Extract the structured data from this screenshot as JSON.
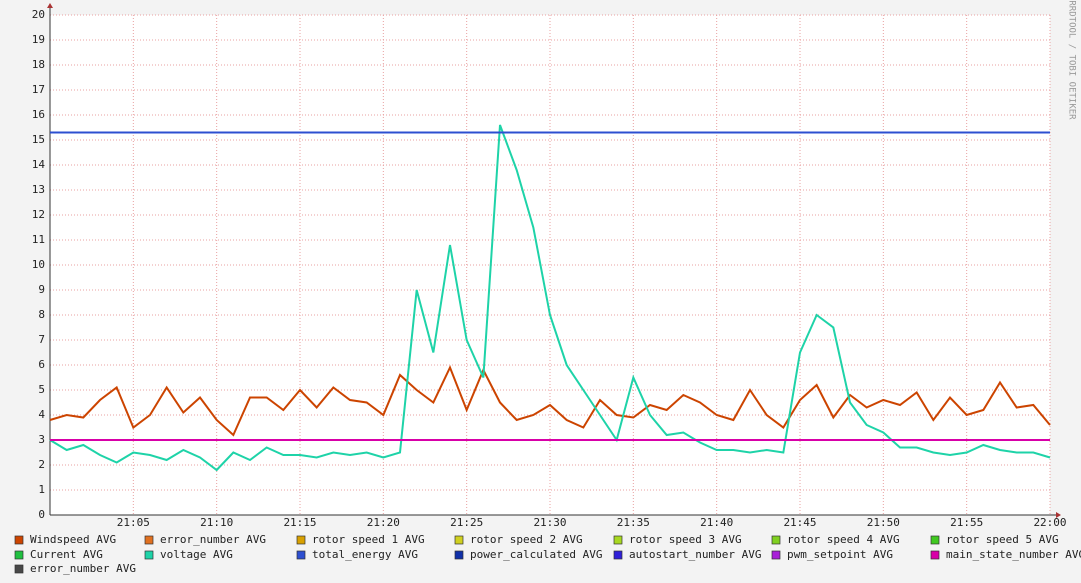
{
  "chart_data": {
    "type": "line",
    "watermark": "RRDTOOL / TOBI OETIKER",
    "x": [
      0,
      1,
      2,
      3,
      4,
      5,
      6,
      7,
      8,
      9,
      10,
      11,
      12,
      13,
      14,
      15,
      16,
      17,
      18,
      19,
      20,
      21,
      22,
      23,
      24,
      25,
      26,
      27,
      28,
      29,
      30,
      31,
      32,
      33,
      34,
      35,
      36,
      37,
      38,
      39,
      40,
      41,
      42,
      43,
      44,
      45,
      46,
      47,
      48,
      49,
      50,
      51,
      52,
      53,
      54,
      55,
      56,
      57,
      58,
      59,
      60
    ],
    "xlim": [
      0,
      60
    ],
    "xticks": [
      {
        "value": 5,
        "label": "21:05"
      },
      {
        "value": 10,
        "label": "21:10"
      },
      {
        "value": 15,
        "label": "21:15"
      },
      {
        "value": 20,
        "label": "21:20"
      },
      {
        "value": 25,
        "label": "21:25"
      },
      {
        "value": 30,
        "label": "21:30"
      },
      {
        "value": 35,
        "label": "21:35"
      },
      {
        "value": 40,
        "label": "21:40"
      },
      {
        "value": 45,
        "label": "21:45"
      },
      {
        "value": 50,
        "label": "21:50"
      },
      {
        "value": 55,
        "label": "21:55"
      },
      {
        "value": 60,
        "label": "22:00"
      }
    ],
    "ylim": [
      0,
      20
    ],
    "yticks": [
      0,
      1,
      2,
      3,
      4,
      5,
      6,
      7,
      8,
      9,
      10,
      11,
      12,
      13,
      14,
      15,
      16,
      17,
      18,
      19,
      20
    ],
    "grid": true,
    "series": [
      {
        "name": "Windspeed AVG",
        "color": "#cc4400",
        "values": [
          3.8,
          4.0,
          3.9,
          4.6,
          5.1,
          3.5,
          4.0,
          5.1,
          4.1,
          4.7,
          3.8,
          3.2,
          4.7,
          4.7,
          4.2,
          5.0,
          4.3,
          5.1,
          4.6,
          4.5,
          4.0,
          5.6,
          5.0,
          4.5,
          5.9,
          4.2,
          5.8,
          4.5,
          3.8,
          4.0,
          4.4,
          3.8,
          3.5,
          4.6,
          4.0,
          3.9,
          4.4,
          4.2,
          4.8,
          4.5,
          4.0,
          3.8,
          5.0,
          4.0,
          3.5,
          4.6,
          5.2,
          3.9,
          4.8,
          4.3,
          4.6,
          4.4,
          4.9,
          3.8,
          4.7,
          4.0,
          4.2,
          5.3,
          4.3,
          4.4,
          3.6
        ]
      },
      {
        "name": "error_number AVG",
        "color": "#e07020"
      },
      {
        "name": "rotor speed 1 AVG",
        "color": "#d8a000"
      },
      {
        "name": "rotor speed 2 AVG",
        "color": "#d0d020"
      },
      {
        "name": "rotor speed 3 AVG",
        "color": "#a8d820"
      },
      {
        "name": "rotor speed 4 AVG",
        "color": "#80d020"
      },
      {
        "name": "rotor speed 5 AVG",
        "color": "#40c820"
      },
      {
        "name": "Current AVG",
        "color": "#20c040"
      },
      {
        "name": "voltage AVG",
        "color": "#1ed3a8",
        "values": [
          3.0,
          2.6,
          2.8,
          2.4,
          2.1,
          2.5,
          2.4,
          2.2,
          2.6,
          2.3,
          1.8,
          2.5,
          2.2,
          2.7,
          2.4,
          2.4,
          2.3,
          2.5,
          2.4,
          2.5,
          2.3,
          2.5,
          9.0,
          6.5,
          10.8,
          7.0,
          5.5,
          15.6,
          13.8,
          11.5,
          8.0,
          6.0,
          5.0,
          4.0,
          3.0,
          5.5,
          4.0,
          3.2,
          3.3,
          2.9,
          2.6,
          2.6,
          2.5,
          2.6,
          2.5,
          6.5,
          8.0,
          7.5,
          4.5,
          3.6,
          3.3,
          2.7,
          2.7,
          2.5,
          2.4,
          2.5,
          2.8,
          2.6,
          2.5,
          2.5,
          2.3
        ]
      },
      {
        "name": "total_energy AVG",
        "color": "#2d4fd0",
        "values": [
          15.3,
          15.3,
          15.3,
          15.3,
          15.3,
          15.3,
          15.3,
          15.3,
          15.3,
          15.3,
          15.3,
          15.3,
          15.3,
          15.3,
          15.3,
          15.3,
          15.3,
          15.3,
          15.3,
          15.3,
          15.3,
          15.3,
          15.3,
          15.3,
          15.3,
          15.3,
          15.3,
          15.3,
          15.3,
          15.3,
          15.3,
          15.3,
          15.3,
          15.3,
          15.3,
          15.3,
          15.3,
          15.3,
          15.3,
          15.3,
          15.3,
          15.3,
          15.3,
          15.3,
          15.3,
          15.3,
          15.3,
          15.3,
          15.3,
          15.3,
          15.3,
          15.3,
          15.3,
          15.3,
          15.3,
          15.3,
          15.3,
          15.3,
          15.3,
          15.3,
          15.3
        ]
      },
      {
        "name": "power_calculated AVG",
        "color": "#1030a8"
      },
      {
        "name": "autostart_number AVG",
        "color": "#3020d8"
      },
      {
        "name": "pwm_setpoint AVG",
        "color": "#a820d8"
      },
      {
        "name": "main_state_number AVG",
        "color": "#d800a8",
        "values": [
          3,
          3,
          3,
          3,
          3,
          3,
          3,
          3,
          3,
          3,
          3,
          3,
          3,
          3,
          3,
          3,
          3,
          3,
          3,
          3,
          3,
          3,
          3,
          3,
          3,
          3,
          3,
          3,
          3,
          3,
          3,
          3,
          3,
          3,
          3,
          3,
          3,
          3,
          3,
          3,
          3,
          3,
          3,
          3,
          3,
          3,
          3,
          3,
          3,
          3,
          3,
          3,
          3,
          3,
          3,
          3,
          3,
          3,
          3,
          3,
          3
        ]
      },
      {
        "name": "error_number AVG",
        "color": "#484848"
      }
    ]
  }
}
